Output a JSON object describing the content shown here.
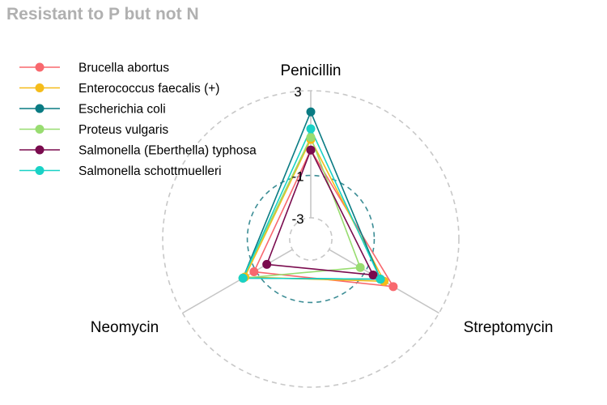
{
  "chart_data": {
    "type": "radar",
    "title": "Resistant to P but not N",
    "axes": [
      "Penicillin",
      "Streptomycin",
      "Neomycin"
    ],
    "tick_labels": [
      "-3",
      "-1",
      "3"
    ],
    "grid_levels": [
      -3,
      -1,
      3
    ],
    "rlim": [
      -4,
      3
    ],
    "legend_position": "top-left",
    "series": [
      {
        "name": "Brucella abortus",
        "color": "#f8686e",
        "values": [
          0.2,
          0.5,
          -0.9
        ]
      },
      {
        "name": "Enterococcus faecalis (+)",
        "color": "#f5bc1a",
        "values": [
          0.7,
          0.0,
          -0.4
        ]
      },
      {
        "name": "Escherichia coli",
        "color": "#0a7b83",
        "values": [
          2.0,
          -0.2,
          -0.3
        ]
      },
      {
        "name": "Proteus vulgaris",
        "color": "#98dc70",
        "values": [
          0.8,
          -1.3,
          -0.3
        ]
      },
      {
        "name": "Salmonella (Eberthella) typhosa",
        "color": "#7a0b4e",
        "values": [
          0.2,
          -0.6,
          -1.6
        ]
      },
      {
        "name": "Salmonella schottmuelleri",
        "color": "#19d2c6",
        "values": [
          1.2,
          -0.2,
          -0.3
        ]
      }
    ]
  }
}
